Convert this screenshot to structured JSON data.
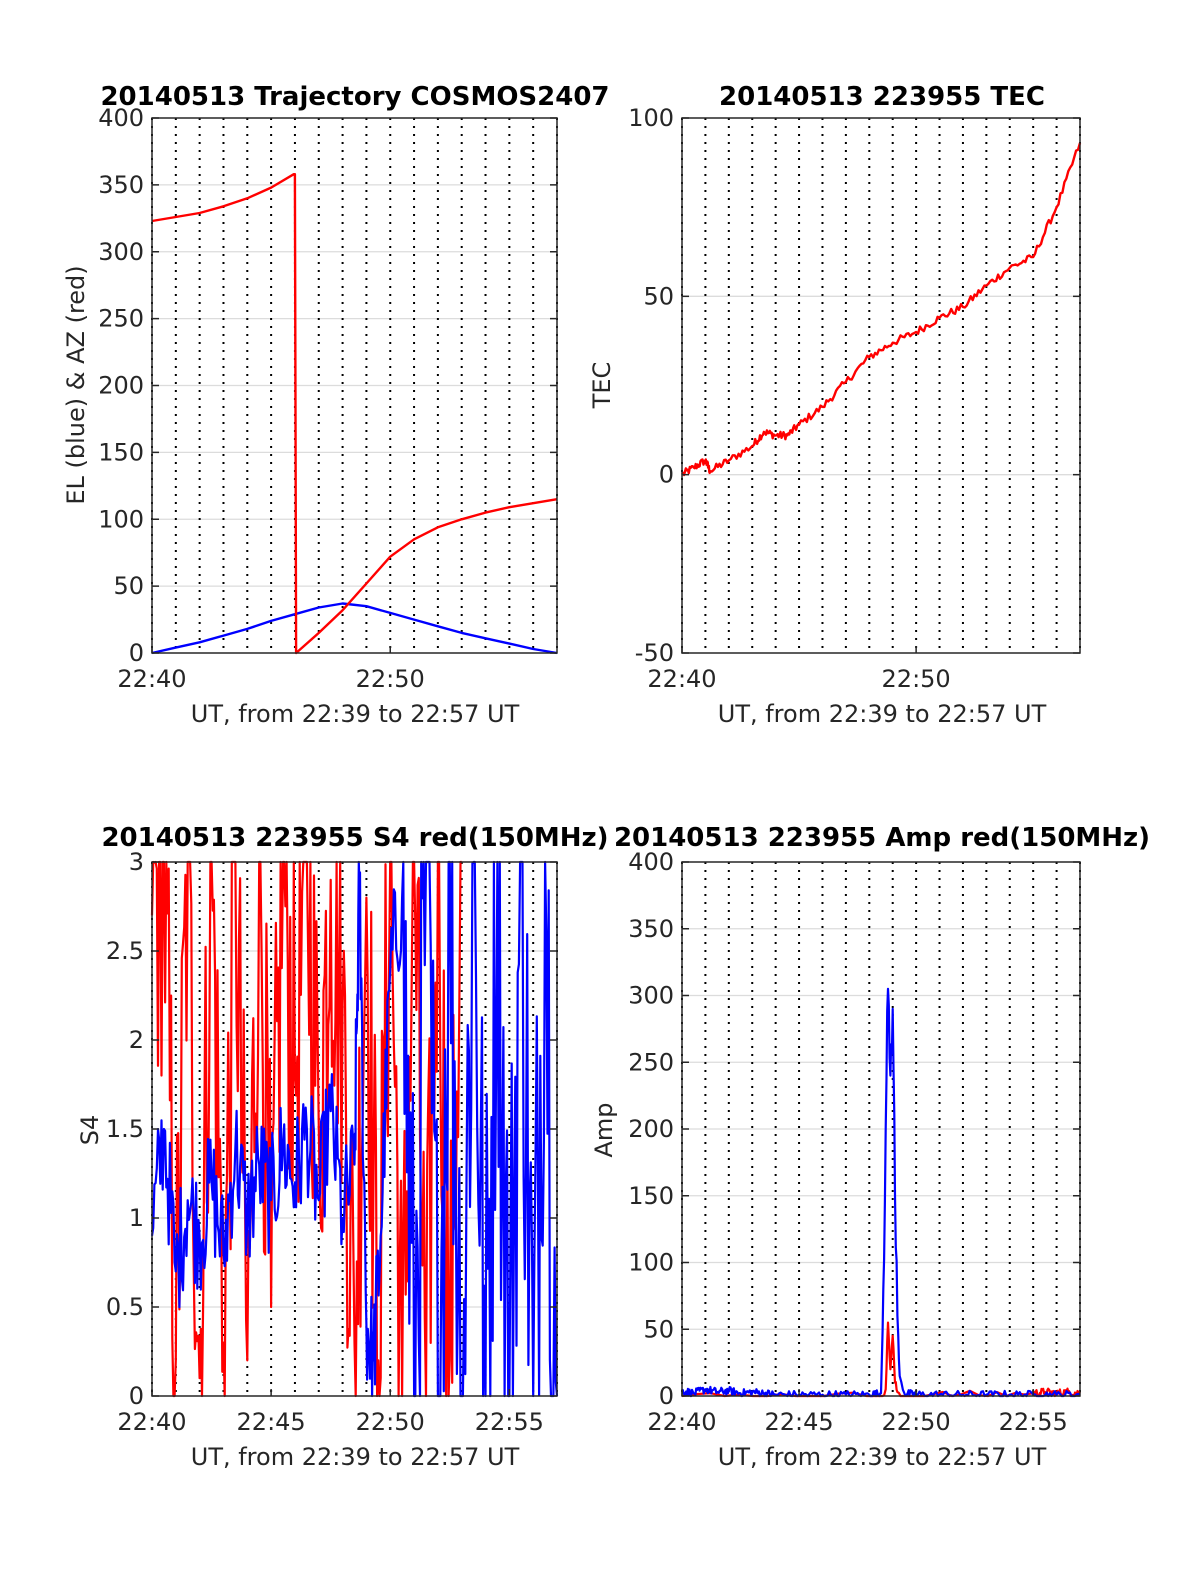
{
  "chart_data": [
    {
      "id": "traj",
      "type": "line",
      "title": "20140513 Trajectory COSMOS2407",
      "xlabel": "UT, from 22:39 to 22:57 UT",
      "ylabel": "EL (blue) & AZ (red)",
      "x_unit": "minutes after 22:40 UT",
      "xlim": [
        0,
        17
      ],
      "ylim": [
        0,
        400
      ],
      "xticks": [
        {
          "value": 0,
          "label": "22:40"
        },
        {
          "value": 10,
          "label": "22:50"
        }
      ],
      "yticks": [
        {
          "value": 0,
          "label": "0"
        },
        {
          "value": 50,
          "label": "50"
        },
        {
          "value": 100,
          "label": "100"
        },
        {
          "value": 150,
          "label": "150"
        },
        {
          "value": 200,
          "label": "200"
        },
        {
          "value": 250,
          "label": "250"
        },
        {
          "value": 300,
          "label": "300"
        },
        {
          "value": 350,
          "label": "350"
        },
        {
          "value": 400,
          "label": "400"
        }
      ],
      "grid": "dotted vertical every 1 min, horizontal at y ticks",
      "series": [
        {
          "color": "#0000ff",
          "x": [
            0,
            1,
            2,
            3,
            4,
            5,
            6,
            7,
            8,
            9,
            10,
            11,
            12,
            13,
            14,
            15,
            16,
            17
          ],
          "y": [
            0,
            4,
            8,
            13,
            18,
            24,
            29,
            34,
            37,
            35,
            30,
            25,
            20,
            15,
            11,
            7,
            3,
            0
          ]
        },
        {
          "color": "#ff0000",
          "x": [
            0,
            1,
            2,
            3,
            4,
            5,
            5.95,
            6.0,
            6.05,
            7,
            8,
            9,
            10,
            11,
            12,
            13,
            14,
            15,
            16,
            17
          ],
          "y": [
            323,
            326,
            329,
            334,
            340,
            348,
            358,
            358,
            0,
            15,
            32,
            52,
            72,
            85,
            94,
            100,
            105,
            109,
            112,
            115
          ]
        }
      ]
    },
    {
      "id": "tec",
      "type": "line",
      "title": "20140513 223955 TEC",
      "xlabel": "UT, from 22:39 to 22:57 UT",
      "ylabel": "TEC",
      "x_unit": "minutes after 22:40 UT",
      "xlim": [
        0,
        17
      ],
      "ylim": [
        -50,
        100
      ],
      "xticks": [
        {
          "value": 0,
          "label": "22:40"
        },
        {
          "value": 10,
          "label": "22:50"
        }
      ],
      "yticks": [
        {
          "value": -50,
          "label": "-50"
        },
        {
          "value": 0,
          "label": "0"
        },
        {
          "value": 50,
          "label": "50"
        },
        {
          "value": 100,
          "label": "100"
        }
      ],
      "grid": "dotted vertical every 1 min, horizontal at y ticks",
      "series": [
        {
          "color": "#ff0000",
          "x": [
            0,
            0.5,
            1,
            1.2,
            2,
            3,
            3.5,
            4,
            4.5,
            5,
            6,
            7,
            8,
            9,
            10,
            11,
            12,
            13,
            14,
            15,
            16,
            17
          ],
          "y": [
            0,
            2,
            4,
            1,
            4,
            8,
            12,
            11,
            11,
            14,
            19,
            26,
            33,
            37,
            40,
            44,
            47,
            53,
            58,
            61,
            75,
            93
          ]
        }
      ]
    },
    {
      "id": "s4",
      "type": "line",
      "title": "20140513 223955 S4 red(150MHz)",
      "xlabel": "UT, from 22:39 to 22:57 UT",
      "ylabel": "S4",
      "x_unit": "minutes after 22:40 UT",
      "xlim": [
        0,
        17
      ],
      "ylim": [
        0,
        3
      ],
      "xticks": [
        {
          "value": 0,
          "label": "22:40"
        },
        {
          "value": 5,
          "label": "22:45"
        },
        {
          "value": 10,
          "label": "22:50"
        },
        {
          "value": 15,
          "label": "22:55"
        }
      ],
      "yticks": [
        {
          "value": 0,
          "label": "0"
        },
        {
          "value": 0.5,
          "label": "0.5"
        },
        {
          "value": 1,
          "label": "1"
        },
        {
          "value": 1.5,
          "label": "1.5"
        },
        {
          "value": 2,
          "label": "2"
        },
        {
          "value": 2.5,
          "label": "2.5"
        },
        {
          "value": 3,
          "label": "3"
        }
      ],
      "grid": "dotted vertical every 1 min, horizontal at y ticks",
      "series": [
        {
          "color": "#ff0000",
          "x": [
            0,
            0.5,
            1,
            1.5,
            2,
            2.5,
            3,
            3.5,
            4,
            4.5,
            5,
            5.5,
            6,
            6.5,
            7,
            7.5,
            8,
            8.5,
            9,
            9.5,
            10,
            10.5,
            11,
            11.5,
            12,
            12.5,
            13
          ],
          "y": [
            2.7,
            3.0,
            0.2,
            3.0,
            0.1,
            3.0,
            0.3,
            3.0,
            0.2,
            3.0,
            0.5,
            3.0,
            1.8,
            3.0,
            1.5,
            2.9,
            2.2,
            0.3,
            2.8,
            0.2,
            3.0,
            0.0,
            3.0,
            0.0,
            3.0,
            0.2,
            3.0
          ]
        },
        {
          "color": "#0000ff",
          "x": [
            0,
            0.5,
            1,
            1.5,
            2,
            2.5,
            3,
            3.5,
            4,
            4.5,
            5,
            5.5,
            6,
            6.5,
            7,
            7.5,
            8,
            8.5,
            8.7,
            9,
            9.3,
            9.6,
            10,
            10.5,
            11,
            11.5,
            12,
            12.5,
            13,
            13.5,
            14,
            14.5,
            15,
            15.5,
            16,
            16.5,
            17
          ],
          "y": [
            0.9,
            1.5,
            0.7,
            1.1,
            0.9,
            1.2,
            0.8,
            1.4,
            1.0,
            1.3,
            1.1,
            1.4,
            1.2,
            1.5,
            1.1,
            1.6,
            1.0,
            1.3,
            2.9,
            0.4,
            0.2,
            0.9,
            2.4,
            2.8,
            0.0,
            3.0,
            0.0,
            3.0,
            0.0,
            3.0,
            0.0,
            3.0,
            0.0,
            3.0,
            0.0,
            3.0,
            0.0
          ]
        }
      ]
    },
    {
      "id": "amp",
      "type": "line",
      "title": "20140513 223955 Amp red(150MHz)",
      "xlabel": "UT, from 22:39 to 22:57 UT",
      "ylabel": "Amp",
      "x_unit": "minutes after 22:40 UT",
      "xlim": [
        0,
        17
      ],
      "ylim": [
        0,
        400
      ],
      "xticks": [
        {
          "value": 0,
          "label": "22:40"
        },
        {
          "value": 5,
          "label": "22:45"
        },
        {
          "value": 10,
          "label": "22:50"
        },
        {
          "value": 15,
          "label": "22:55"
        }
      ],
      "yticks": [
        {
          "value": 0,
          "label": "0"
        },
        {
          "value": 50,
          "label": "50"
        },
        {
          "value": 100,
          "label": "100"
        },
        {
          "value": 150,
          "label": "150"
        },
        {
          "value": 200,
          "label": "200"
        },
        {
          "value": 250,
          "label": "250"
        },
        {
          "value": 300,
          "label": "300"
        },
        {
          "value": 350,
          "label": "350"
        },
        {
          "value": 400,
          "label": "400"
        }
      ],
      "grid": "dotted vertical every 1 min, horizontal at y ticks",
      "series": [
        {
          "color": "#ff0000",
          "x": [
            0,
            8.5,
            8.7,
            8.8,
            8.9,
            9.0,
            9.1,
            9.2,
            9.4,
            9.6,
            15,
            15.5,
            16,
            16.5,
            17
          ],
          "y": [
            0,
            0,
            5,
            55,
            20,
            45,
            10,
            3,
            0,
            0,
            2,
            3,
            2,
            3,
            2
          ]
        },
        {
          "color": "#0000ff",
          "x": [
            0,
            0.5,
            1,
            1.5,
            2,
            2.5,
            3,
            3.5,
            4,
            5,
            6,
            7,
            8,
            8.5,
            8.6,
            8.7,
            8.8,
            8.9,
            9.0,
            9.1,
            9.2,
            9.3,
            9.5,
            10,
            11,
            12,
            13,
            14,
            15,
            16,
            17
          ],
          "y": [
            4,
            2,
            5,
            3,
            4,
            2,
            3,
            2,
            1,
            1,
            1,
            1,
            1,
            2,
            80,
            200,
            305,
            240,
            290,
            150,
            60,
            15,
            2,
            1,
            1,
            1,
            1,
            1,
            1,
            1,
            1
          ]
        }
      ]
    }
  ]
}
